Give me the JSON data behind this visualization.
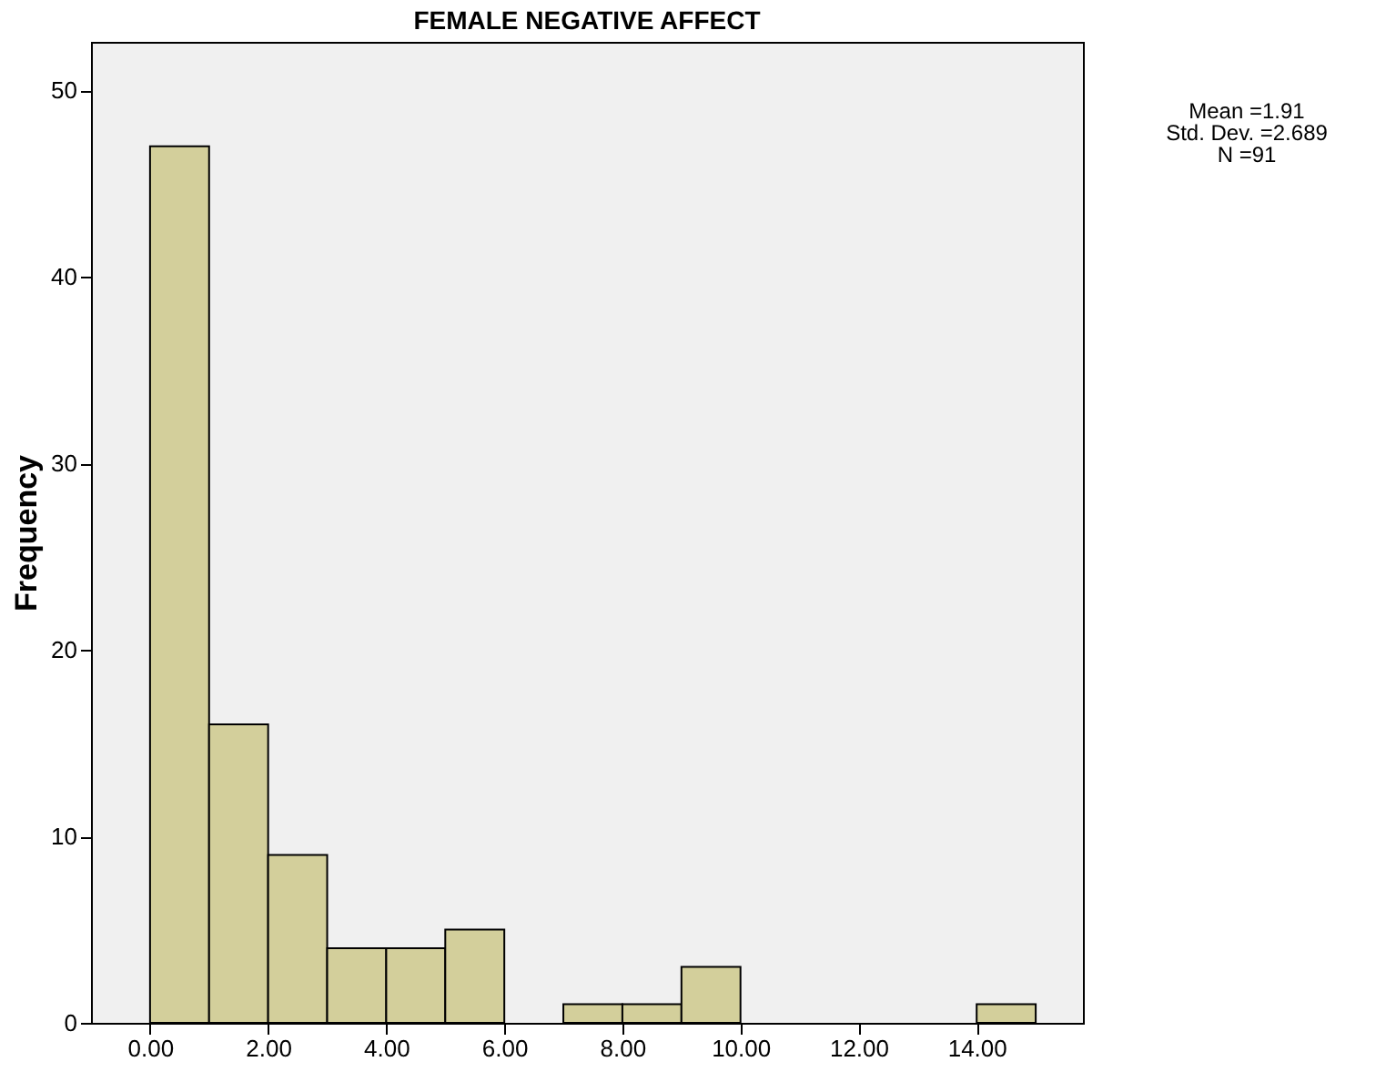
{
  "chart_data": {
    "type": "histogram",
    "title": "FEMALE NEGATIVE AFFECT",
    "ylabel": "Frequency",
    "bins": [
      0,
      1,
      2,
      3,
      4,
      5,
      6,
      7,
      8,
      9,
      10,
      11,
      12,
      13,
      14,
      15
    ],
    "values": [
      47,
      16,
      9,
      4,
      4,
      5,
      0,
      1,
      1,
      3,
      0,
      0,
      0,
      0,
      1
    ],
    "color": "#d3cf9b",
    "xlim": [
      -1,
      15.8
    ],
    "ylim": [
      0,
      52.6
    ],
    "xticks": [
      {
        "value": 0,
        "label": "0.00"
      },
      {
        "value": 2,
        "label": "2.00"
      },
      {
        "value": 4,
        "label": "4.00"
      },
      {
        "value": 6,
        "label": "6.00"
      },
      {
        "value": 8,
        "label": "8.00"
      },
      {
        "value": 10,
        "label": "10.00"
      },
      {
        "value": 12,
        "label": "12.00"
      },
      {
        "value": 14,
        "label": "14.00"
      }
    ],
    "yticks": [
      0,
      10,
      20,
      30,
      40,
      50
    ],
    "annotations": [
      "Mean =1.91",
      "Std. Dev. =2.689",
      "N =91"
    ]
  }
}
